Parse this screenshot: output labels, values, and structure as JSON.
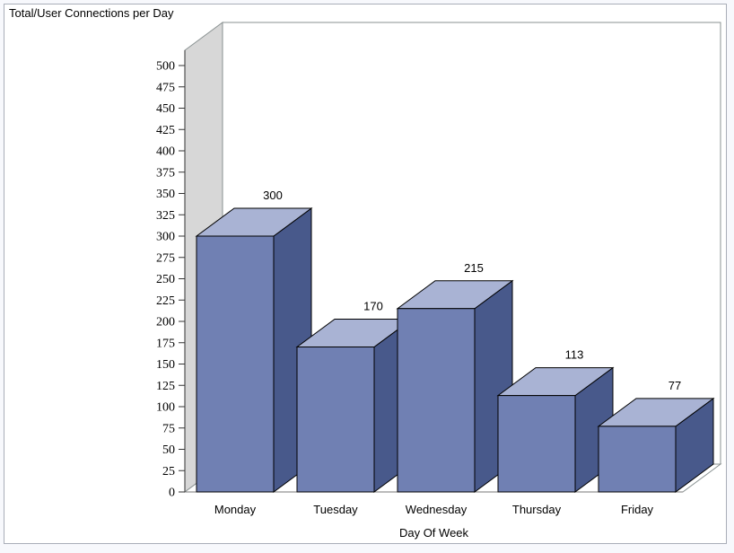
{
  "window": {
    "background_color": "#f7f8fc",
    "panel_border_color": "#a9aeb8",
    "panel_background": "#ffffff"
  },
  "chart_data": {
    "type": "bar",
    "variant": "3d-block",
    "title": "Total/User Connections per Day",
    "xlabel": "Day Of Week",
    "ylabel": "",
    "categories": [
      "Monday",
      "Tuesday",
      "Wednesday",
      "Thursday",
      "Friday"
    ],
    "values": [
      300,
      170,
      215,
      113,
      77
    ],
    "value_labels": [
      "300",
      "170",
      "215",
      "113",
      "77"
    ],
    "ylim": [
      0,
      500
    ],
    "ytick_step": 25,
    "grid": false,
    "legend": "none",
    "colors": {
      "bar_front": "#7080b3",
      "bar_top": "#a9b3d4",
      "bar_side": "#48598b",
      "bar_outline": "#000000",
      "wall_fill": "#d7d7d7",
      "wall_edge": "#8a9292",
      "floor_fill": "#ffffff",
      "back_wall_fill": "#ffffff",
      "axis_line": "#333333",
      "front_baseline": "#777777",
      "text": "#000000"
    }
  }
}
